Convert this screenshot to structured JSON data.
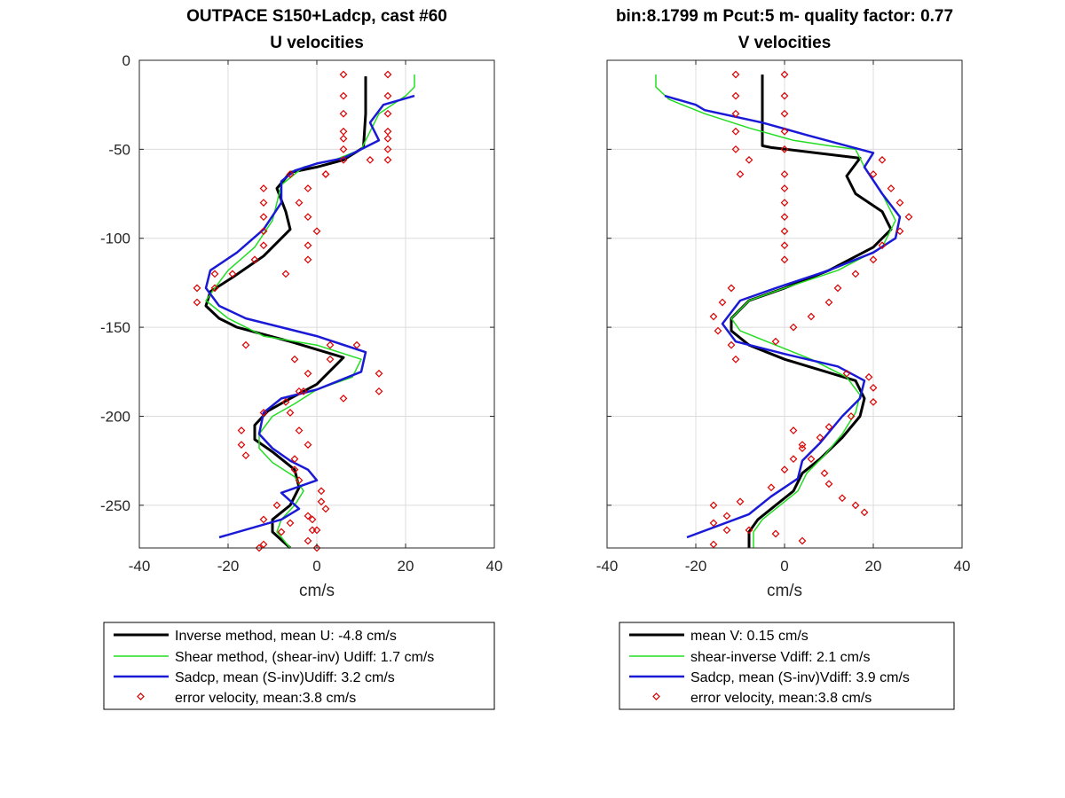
{
  "chart_data": [
    {
      "type": "line",
      "title": "OUTPACE S150+Ladcp, cast #60",
      "subtitle": "U velocities",
      "xlabel": "cm/s",
      "ylabel": "",
      "xlim": [
        -40,
        40
      ],
      "ylim": [
        -274,
        0
      ],
      "xticks": [
        -40,
        -20,
        0,
        20,
        40
      ],
      "yticks": [
        0,
        -50,
        -100,
        -150,
        -200,
        -250
      ],
      "xtick_labels": [
        "-40",
        "-20",
        "0",
        "20",
        "40"
      ],
      "ytick_labels": [
        "0",
        "-50",
        "-100",
        "-150",
        "-200",
        "-250"
      ],
      "grid": true,
      "legend_position": "below",
      "series": [
        {
          "name": "Inverse method, mean U:  -4.8 cm/s",
          "color": "#000000",
          "style": "line",
          "width": 3,
          "x": [
            11,
            11,
            11,
            10.5,
            6,
            0,
            -6,
            -9,
            -7,
            -6,
            -12,
            -19,
            -24,
            -25,
            -22,
            -18,
            -6,
            6,
            0,
            -6,
            -11,
            -14,
            -14,
            -10,
            -5,
            -4,
            -6,
            -10,
            -10,
            -6
          ],
          "y": [
            -9,
            -20,
            -30,
            -49,
            -56,
            -60,
            -63,
            -72,
            -85,
            -95,
            -110,
            -122,
            -130,
            -138,
            -145,
            -150,
            -158,
            -167,
            -182,
            -190,
            -197,
            -205,
            -213,
            -220,
            -230,
            -240,
            -250,
            -258,
            -265,
            -274
          ]
        },
        {
          "name": "Shear method, (shear-inv)  Udiff:  1.7 cm/s",
          "color": "#22dd22",
          "style": "line",
          "width": 1.5,
          "x": [
            22,
            22,
            20,
            14,
            12,
            10,
            4,
            -3,
            -8,
            -9,
            -10,
            -14,
            -20,
            -23,
            -25,
            -20,
            -12,
            0,
            10,
            8,
            0,
            -5,
            -10,
            -13,
            -13,
            -10,
            -5,
            -3,
            -5,
            -8,
            -9,
            -6
          ],
          "y": [
            -8,
            -15,
            -20,
            -30,
            -40,
            -50,
            -56,
            -60,
            -70,
            -80,
            -90,
            -105,
            -118,
            -128,
            -135,
            -145,
            -155,
            -160,
            -168,
            -178,
            -185,
            -193,
            -200,
            -210,
            -218,
            -226,
            -234,
            -242,
            -250,
            -258,
            -265,
            -274
          ]
        },
        {
          "name": "Sadcp, mean (S-inv)Udiff: 3.2 cm/s",
          "color": "#1a1ad6",
          "style": "line",
          "width": 2.5,
          "x": [
            22,
            15,
            12,
            14,
            6,
            0,
            -5,
            -8,
            -8,
            -12,
            -18,
            -24,
            -25,
            -22,
            -16,
            -8,
            0,
            11,
            10,
            0,
            -8,
            -12,
            -13,
            -10,
            -6,
            -2,
            0,
            -8,
            -4,
            -8,
            -22
          ],
          "y": [
            -20,
            -25,
            -35,
            -45,
            -55,
            -58,
            -62,
            -68,
            -80,
            -95,
            -108,
            -118,
            -128,
            -138,
            -145,
            -150,
            -155,
            -164,
            -175,
            -185,
            -190,
            -198,
            -210,
            -218,
            -225,
            -230,
            -236,
            -243,
            -252,
            -258,
            -268
          ]
        },
        {
          "name": "error velocity, mean:3.8 cm/s",
          "color": "#dd0000",
          "style": "markers",
          "x": [
            6,
            6,
            6,
            6,
            6,
            6,
            6,
            2,
            -6,
            -12,
            -12,
            -12,
            -12,
            -12,
            -14,
            -19,
            -23,
            -27,
            -27,
            -23,
            -16,
            3,
            -4,
            -7,
            -12,
            -17,
            -17,
            -16,
            -6,
            -1,
            0,
            -2,
            -9,
            -12,
            -8,
            -12,
            -13,
            16,
            16,
            16,
            16,
            16,
            16,
            16,
            12,
            2,
            -2,
            -4,
            -2,
            0,
            -2,
            -2,
            -7,
            -5,
            -2,
            3,
            9,
            14,
            14,
            6,
            -3,
            -6,
            -4,
            -2,
            -5,
            -5,
            -4,
            1,
            1,
            2,
            -1,
            0,
            -2
          ],
          "y": [
            -8,
            -20,
            -30,
            -40,
            -50,
            -56,
            -44,
            -64,
            -64,
            -72,
            -80,
            -88,
            -96,
            -104,
            -112,
            -120,
            -128,
            -136,
            -128,
            -120,
            -160,
            -160,
            -186,
            -192,
            -198,
            -208,
            -216,
            -222,
            -260,
            -264,
            -274,
            -256,
            -250,
            -258,
            -265,
            -272,
            -274,
            -8,
            -20,
            -30,
            -40,
            -50,
            -56,
            -44,
            -56,
            -64,
            -72,
            -80,
            -88,
            -96,
            -104,
            -112,
            -120,
            -168,
            -176,
            -168,
            -160,
            -176,
            -186,
            -190,
            -186,
            -198,
            -208,
            -216,
            -224,
            -230,
            -236,
            -242,
            -248,
            -252,
            -258,
            -264,
            -270
          ]
        }
      ]
    },
    {
      "type": "line",
      "title": "bin:8.1799 m  Pcut:5 m- quality factor:  0.77",
      "subtitle": "V velocities",
      "xlabel": "cm/s",
      "ylabel": "",
      "xlim": [
        -40,
        40
      ],
      "ylim": [
        -274,
        0
      ],
      "xticks": [
        -40,
        -20,
        0,
        20,
        40
      ],
      "yticks": [
        0,
        -50,
        -100,
        -150,
        -200,
        -250
      ],
      "xtick_labels": [
        "-40",
        "-20",
        "0",
        "20",
        "40"
      ],
      "ytick_labels": [
        "",
        "",
        "",
        "",
        "",
        ""
      ],
      "grid": true,
      "legend_position": "below",
      "series": [
        {
          "name": "mean V:  0.15 cm/s",
          "color": "#000000",
          "style": "line",
          "width": 3,
          "x": [
            -5,
            -5,
            -5,
            -5,
            -5,
            -3,
            17,
            14,
            16,
            22,
            24,
            20,
            10,
            0,
            -8,
            -12,
            -12,
            -8,
            0,
            16,
            18,
            17,
            13,
            8,
            4,
            2,
            -2,
            -6,
            -8,
            -8
          ],
          "y": [
            -8,
            -20,
            -30,
            -40,
            -48,
            -49,
            -55,
            -65,
            -75,
            -85,
            -95,
            -105,
            -118,
            -128,
            -135,
            -145,
            -152,
            -160,
            -168,
            -180,
            -190,
            -200,
            -212,
            -224,
            -232,
            -242,
            -250,
            -258,
            -265,
            -274
          ]
        },
        {
          "name": "shear-inverse Vdiff:  2.1 cm/s",
          "color": "#22dd22",
          "style": "line",
          "width": 1.5,
          "x": [
            -29,
            -29,
            -26,
            -18,
            -8,
            2,
            10,
            16,
            18,
            22,
            25,
            22,
            12,
            0,
            -8,
            -12,
            -10,
            -2,
            6,
            14,
            17,
            16,
            13,
            9,
            5,
            3,
            -1,
            -5,
            -7,
            -7
          ],
          "y": [
            -8,
            -15,
            -22,
            -30,
            -38,
            -45,
            -48,
            -50,
            -60,
            -75,
            -90,
            -105,
            -118,
            -128,
            -135,
            -145,
            -152,
            -160,
            -168,
            -178,
            -188,
            -198,
            -210,
            -222,
            -232,
            -242,
            -250,
            -258,
            -265,
            -274
          ]
        },
        {
          "name": "Sadcp, mean (S-inv)Vdiff: 3.9 cm/s",
          "color": "#1a1ad6",
          "style": "line",
          "width": 2.5,
          "x": [
            -27,
            -20,
            -18,
            -5,
            5,
            14,
            20,
            18,
            22,
            26,
            25,
            20,
            10,
            -2,
            -10,
            -14,
            -11,
            0,
            12,
            18,
            17,
            13,
            8,
            4,
            3,
            -3,
            -8,
            -22
          ],
          "y": [
            -20,
            -25,
            -28,
            -35,
            -42,
            -48,
            -52,
            -60,
            -75,
            -88,
            -100,
            -108,
            -118,
            -128,
            -135,
            -148,
            -158,
            -165,
            -172,
            -180,
            -190,
            -200,
            -215,
            -225,
            -235,
            -245,
            -255,
            -268
          ]
        },
        {
          "name": "error velocity, mean:3.8 cm/s",
          "color": "#dd0000",
          "style": "markers",
          "x": [
            -11,
            -11,
            -11,
            -11,
            -11,
            -8,
            -10,
            -12,
            -14,
            -16,
            -15,
            -12,
            -11,
            2,
            4,
            6,
            9,
            10,
            13,
            16,
            18,
            -10,
            -13,
            -13,
            -16,
            -16,
            -16,
            -8,
            -2,
            4,
            0,
            0,
            0,
            0,
            0,
            0,
            0,
            0,
            0,
            0,
            0,
            0,
            22,
            20,
            24,
            26,
            28,
            26,
            22,
            20,
            16,
            12,
            10,
            6,
            2,
            -2,
            14,
            19,
            20,
            20,
            15,
            10,
            8,
            4,
            2,
            0,
            -3
          ],
          "y": [
            -8,
            -20,
            -30,
            -40,
            -50,
            -56,
            -64,
            -128,
            -136,
            -144,
            -152,
            -160,
            -168,
            -208,
            -216,
            -224,
            -232,
            -238,
            -246,
            -250,
            -254,
            -248,
            -256,
            -264,
            -272,
            -250,
            -260,
            -264,
            -266,
            -270,
            -8,
            -20,
            -30,
            -40,
            -50,
            -64,
            -72,
            -80,
            -88,
            -96,
            -104,
            -112,
            -56,
            -64,
            -72,
            -80,
            -88,
            -96,
            -104,
            -112,
            -120,
            -128,
            -136,
            -144,
            -150,
            -158,
            -176,
            -178,
            -184,
            -192,
            -200,
            -206,
            -212,
            -218,
            -224,
            -230,
            -240
          ]
        }
      ]
    }
  ]
}
